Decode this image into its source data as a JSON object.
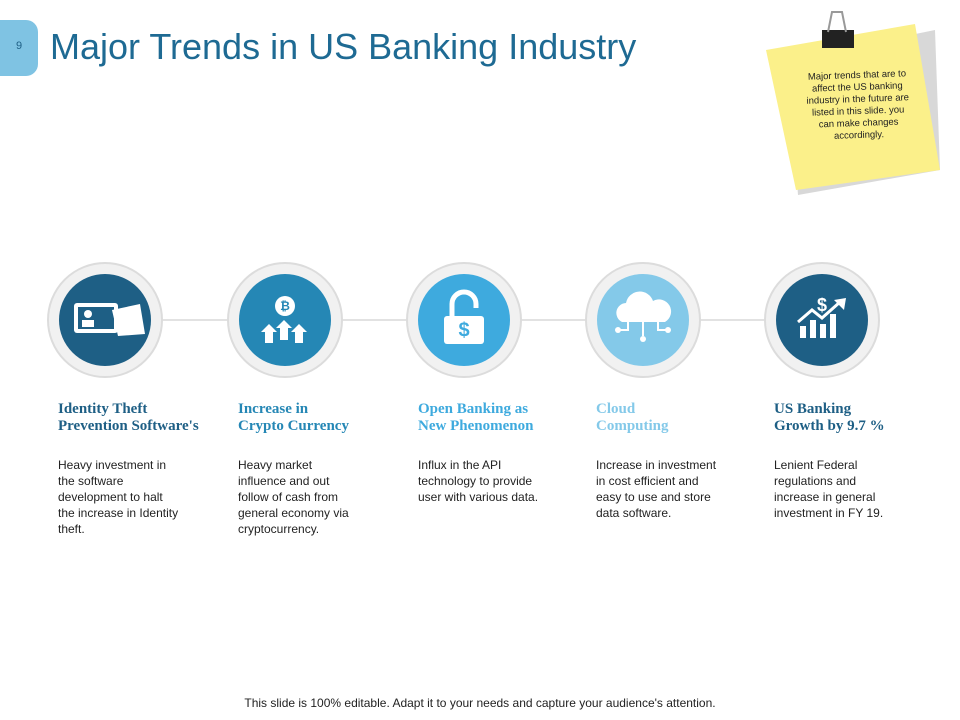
{
  "slide_number": "9",
  "title": "Major Trends in US Banking Industry",
  "note": "Major trends that are to affect the US banking industry in the future are listed in this slide. you can make changes accordingly.",
  "items": [
    {
      "title": [
        "Identity Theft",
        "Prevention Software's"
      ],
      "text": "Heavy investment in the software development to halt the increase in Identity theft."
    },
    {
      "title": [
        "Increase in",
        "Crypto Currency"
      ],
      "text": "Heavy market influence and out follow of cash from general economy via cryptocurrency."
    },
    {
      "title": [
        "Open Banking as",
        "New Phenomenon"
      ],
      "text": "Influx in the API technology to provide user with various data."
    },
    {
      "title": [
        "Cloud",
        "Computing"
      ],
      "text": "Increase in investment in cost efficient and easy to use and store data software."
    },
    {
      "title": [
        "US Banking",
        "Growth by 9.7 %"
      ],
      "text": "Lenient Federal regulations and increase in general investment in FY 19."
    }
  ],
  "footer": "This slide is 100% editable. Adapt it to your needs and capture your audience's attention."
}
